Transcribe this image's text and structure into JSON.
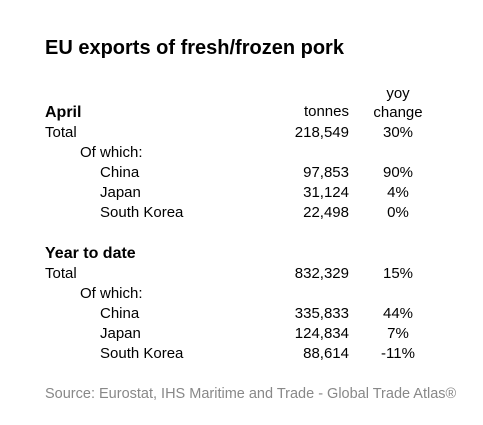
{
  "chart_data": {
    "type": "table",
    "title": "EU exports of fresh/frozen pork",
    "columns": {
      "tonnes": "tonnes",
      "yoy_line1": "yoy",
      "yoy_line2": "change"
    },
    "sections": [
      {
        "label": "April",
        "total": {
          "label": "Total",
          "tonnes": "218,549",
          "yoy": "30%"
        },
        "of_which": "Of which:",
        "rows": [
          {
            "label": "China",
            "tonnes": "97,853",
            "yoy": "90%"
          },
          {
            "label": "Japan",
            "tonnes": "31,124",
            "yoy": "4%"
          },
          {
            "label": "South Korea",
            "tonnes": "22,498",
            "yoy": "0%"
          }
        ]
      },
      {
        "label": "Year to date",
        "total": {
          "label": "Total",
          "tonnes": "832,329",
          "yoy": "15%"
        },
        "of_which": "Of which:",
        "rows": [
          {
            "label": "China",
            "tonnes": "335,833",
            "yoy": "44%"
          },
          {
            "label": "Japan",
            "tonnes": "124,834",
            "yoy": "7%"
          },
          {
            "label": "South Korea",
            "tonnes": "88,614",
            "yoy": "-11%"
          }
        ]
      }
    ],
    "source": "Source: Eurostat, IHS Maritime and Trade - Global Trade Atlas®"
  }
}
